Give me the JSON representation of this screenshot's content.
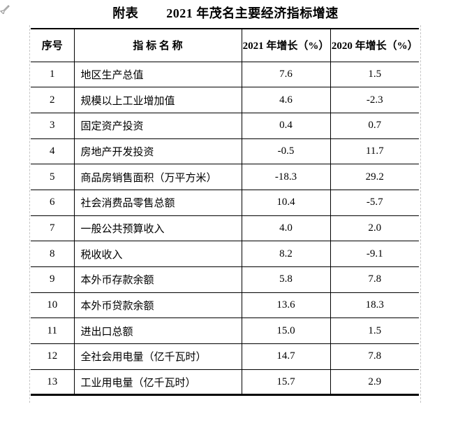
{
  "page": {
    "title_prefix": "附表",
    "title_main": "2021 年茂名主要经济指标增速"
  },
  "icons": {
    "cursor": "gray-arrow-cursor"
  },
  "colors": {
    "text": "#000000",
    "table_border": "#000000",
    "dashed_gridline": "#c6c6c6",
    "cursor_gray": "#9b9b9b",
    "background": "#ffffff"
  },
  "table": {
    "columns": [
      "序号",
      "指 标 名 称",
      "2021 年增长（%）",
      "2020 年增长（%）"
    ],
    "rows": [
      {
        "no": "1",
        "name": "地区生产总值",
        "v2021": "7.6",
        "v2020": "1.5"
      },
      {
        "no": "2",
        "name": "规模以上工业增加值",
        "v2021": "4.6",
        "v2020": "-2.3"
      },
      {
        "no": "3",
        "name": "固定资产投资",
        "v2021": "0.4",
        "v2020": "0.7"
      },
      {
        "no": "4",
        "name": "房地产开发投资",
        "v2021": "-0.5",
        "v2020": "11.7"
      },
      {
        "no": "5",
        "name": "商品房销售面积（万平方米）",
        "v2021": "-18.3",
        "v2020": "29.2"
      },
      {
        "no": "6",
        "name": "社会消费品零售总额",
        "v2021": "10.4",
        "v2020": "-5.7"
      },
      {
        "no": "7",
        "name": "一般公共预算收入",
        "v2021": "4.0",
        "v2020": "2.0"
      },
      {
        "no": "8",
        "name": "税收收入",
        "v2021": "8.2",
        "v2020": "-9.1"
      },
      {
        "no": "9",
        "name": "本外币存款余额",
        "v2021": "5.8",
        "v2020": "7.8"
      },
      {
        "no": "10",
        "name": "本外币贷款余额",
        "v2021": "13.6",
        "v2020": "18.3"
      },
      {
        "no": "11",
        "name": "进出口总额",
        "v2021": "15.0",
        "v2020": "1.5"
      },
      {
        "no": "12",
        "name": "全社会用电量（亿千瓦时）",
        "v2021": "14.7",
        "v2020": "7.8"
      },
      {
        "no": "13",
        "name": "工业用电量（亿千瓦时）",
        "v2021": "15.7",
        "v2020": "2.9"
      }
    ]
  },
  "chart_data": {
    "type": "table",
    "title": "附表 2021 年茂名主要经济指标增速",
    "categories": [
      "地区生产总值",
      "规模以上工业增加值",
      "固定资产投资",
      "房地产开发投资",
      "商品房销售面积（万平方米）",
      "社会消费品零售总额",
      "一般公共预算收入",
      "税收收入",
      "本外币存款余额",
      "本外币贷款余额",
      "进出口总额",
      "全社会用电量（亿千瓦时）",
      "工业用电量（亿千瓦时）"
    ],
    "series": [
      {
        "name": "2021 年增长（%）",
        "values": [
          7.6,
          4.6,
          0.4,
          -0.5,
          -18.3,
          10.4,
          4.0,
          8.2,
          5.8,
          13.6,
          15.0,
          14.7,
          15.7
        ]
      },
      {
        "name": "2020 年增长（%）",
        "values": [
          1.5,
          -2.3,
          0.7,
          11.7,
          29.2,
          -5.7,
          2.0,
          -9.1,
          7.8,
          18.3,
          1.5,
          7.8,
          2.9
        ]
      }
    ]
  }
}
